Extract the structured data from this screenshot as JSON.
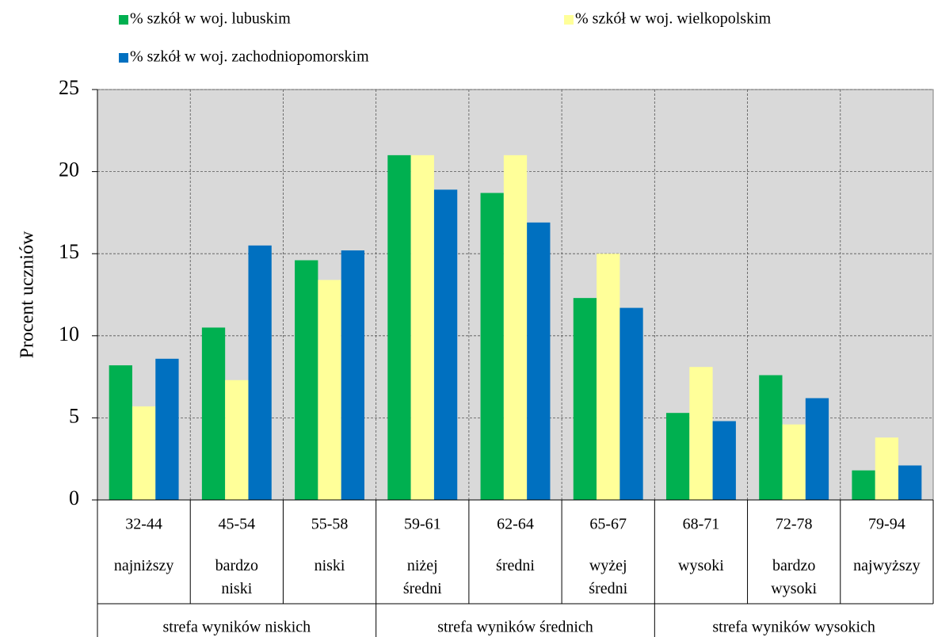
{
  "chart_data": {
    "type": "bar",
    "y_label": "Procent uczniów",
    "categories": [
      "32-44",
      "45-54",
      "55-58",
      "59-61",
      "62-64",
      "65-67",
      "68-71",
      "72-78",
      "79-94"
    ],
    "levels": [
      "najniższy",
      "bardzo niski",
      "niski",
      "niżej średni",
      "średni",
      "wyżej średni",
      "wysoki",
      "bardzo wysoki",
      "najwyższy"
    ],
    "zones": [
      "strefa wyników niskich",
      "strefa wyników średnich",
      "strefa wyników wysokich"
    ],
    "series": [
      {
        "name": "% szkół w woj. lubuskim",
        "color": "#00b050",
        "values": [
          8.2,
          10.5,
          14.6,
          21.0,
          18.7,
          12.3,
          5.3,
          7.6,
          1.8
        ]
      },
      {
        "name": "% szkół w woj. wielkopolskim",
        "color": "#ffff99",
        "values": [
          5.7,
          7.3,
          13.4,
          21.0,
          21.0,
          15.0,
          8.1,
          4.6,
          3.8
        ]
      },
      {
        "name": "% szkół w woj. zachodniopomorskim",
        "color": "#0070c0",
        "values": [
          8.6,
          15.5,
          15.2,
          18.9,
          16.9,
          11.7,
          4.8,
          6.2,
          2.1
        ]
      }
    ],
    "ylim": [
      0,
      25
    ],
    "yticks": [
      0,
      5,
      10,
      15,
      20,
      25
    ],
    "grid": true,
    "legend": "top"
  }
}
